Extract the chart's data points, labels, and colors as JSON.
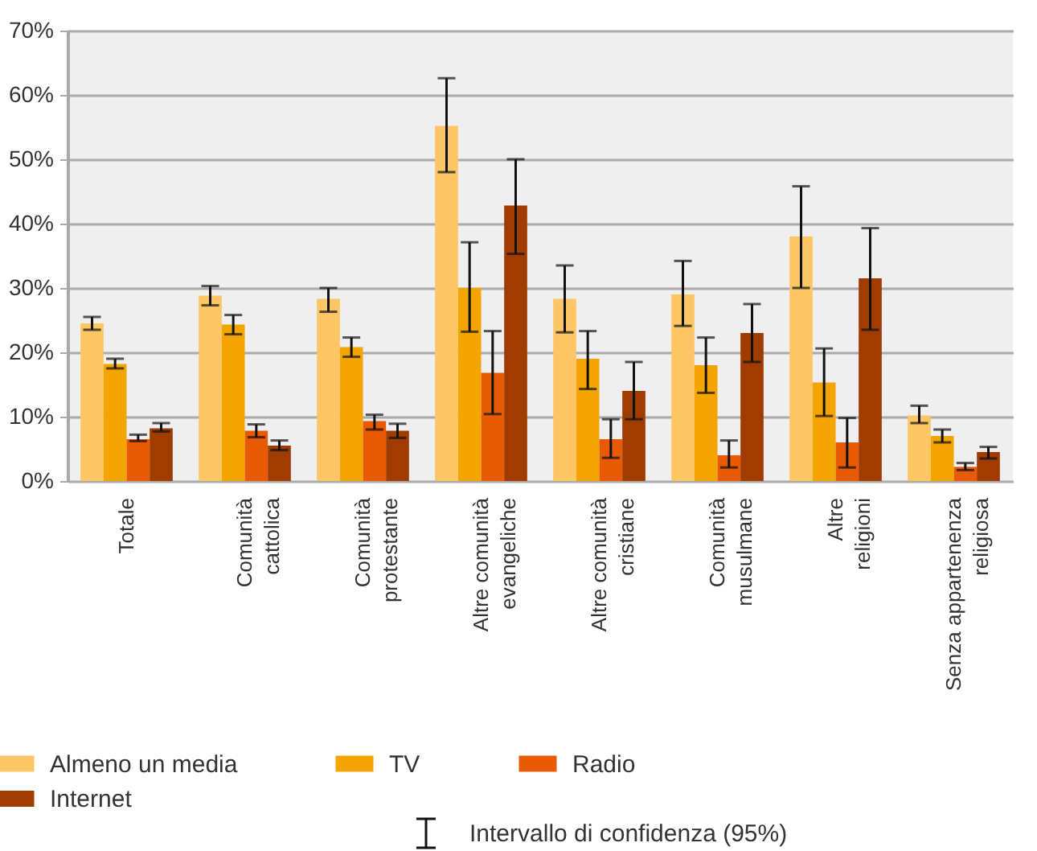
{
  "chart_data": {
    "type": "bar",
    "categories": [
      "Totale",
      "Comunità\ncattolica",
      "Comunità\nprotestante",
      "Altre comunità\nevangeliche",
      "Altre comunità\ncristiane",
      "Comunità\nmusulmane",
      "Altre\nreligioni",
      "Senza appartenenza\nreligiosa"
    ],
    "series": [
      {
        "name": "Almeno un media",
        "color": "#fcc665",
        "values": [
          24.5,
          28.8,
          28.3,
          55.2,
          28.3,
          29,
          38,
          10.2
        ],
        "errors": [
          [
            23.5,
            25.5
          ],
          [
            27.3,
            30.3
          ],
          [
            26.3,
            30
          ],
          [
            48,
            62.6
          ],
          [
            23.1,
            33.5
          ],
          [
            24.1,
            34.2
          ],
          [
            30,
            45.8
          ],
          [
            9,
            11.7
          ]
        ]
      },
      {
        "name": "TV",
        "color": "#f5a500",
        "values": [
          18.2,
          24.3,
          20.8,
          30,
          19,
          18,
          15.3,
          7
        ],
        "errors": [
          [
            17.5,
            19
          ],
          [
            22.8,
            25.8
          ],
          [
            19.3,
            22.3
          ],
          [
            23.2,
            37.1
          ],
          [
            14.3,
            23.3
          ],
          [
            13.7,
            22.3
          ],
          [
            10.1,
            20.6
          ],
          [
            6,
            8
          ]
        ]
      },
      {
        "name": "Radio",
        "color": "#e85a04",
        "values": [
          6.5,
          7.8,
          9.3,
          16.8,
          6.5,
          4,
          6,
          2.2
        ],
        "errors": [
          [
            6.2,
            7.2
          ],
          [
            6.8,
            8.8
          ],
          [
            8,
            10.3
          ],
          [
            10.4,
            23.3
          ],
          [
            3.6,
            9.6
          ],
          [
            2.1,
            6.3
          ],
          [
            2.1,
            9.8
          ],
          [
            1.7,
            2.8
          ]
        ]
      },
      {
        "name": "Internet",
        "color": "#a03c00",
        "values": [
          8.2,
          5.5,
          7.8,
          42.8,
          14,
          23,
          31.5,
          4.5
        ],
        "errors": [
          [
            7.7,
            9
          ],
          [
            4.8,
            6.3
          ],
          [
            6.7,
            8.9
          ],
          [
            35.3,
            50
          ],
          [
            9.6,
            18.5
          ],
          [
            18.5,
            27.5
          ],
          [
            23.5,
            39.3
          ],
          [
            3.5,
            5.3
          ]
        ]
      }
    ],
    "ylim": [
      0,
      70
    ],
    "yticks": [
      {
        "value": 0,
        "label": "0%"
      },
      {
        "value": 10,
        "label": "10%"
      },
      {
        "value": 20,
        "label": "20%"
      },
      {
        "value": 30,
        "label": "30%"
      },
      {
        "value": 40,
        "label": "40%"
      },
      {
        "value": 50,
        "label": "50%"
      },
      {
        "value": 60,
        "label": "60%"
      },
      {
        "value": 70,
        "label": "70%"
      }
    ],
    "grid": "y",
    "legend": "bottom",
    "annotations": [
      "Intervallo di confidenza (95%)"
    ]
  }
}
